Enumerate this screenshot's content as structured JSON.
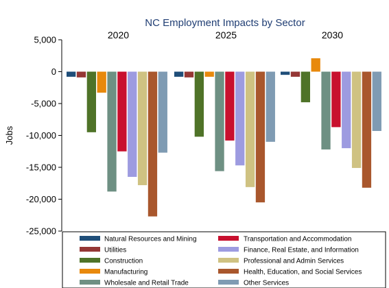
{
  "chart_data": {
    "type": "bar",
    "title": "NC Employment Impacts by Sector",
    "ylabel": "Jobs",
    "xlabel": "",
    "ylim": [
      -25000,
      5000
    ],
    "yticks": [
      5000,
      0,
      -5000,
      -10000,
      -15000,
      -20000,
      -25000
    ],
    "ytick_labels": [
      "5,000",
      "0",
      "-5,000",
      "-10,000",
      "-15,000",
      "-20,000",
      "-25,000"
    ],
    "grid": false,
    "legend_position": "bottom",
    "categories": [
      "2020",
      "2025",
      "2030"
    ],
    "series": [
      {
        "name": "Natural Resources and Mining",
        "color": "#1f4e79",
        "values": [
          -800,
          -800,
          -500
        ]
      },
      {
        "name": "Utilities",
        "color": "#953735",
        "values": [
          -900,
          -900,
          -800
        ]
      },
      {
        "name": "Construction",
        "color": "#4f7328",
        "values": [
          -9500,
          -10200,
          -4800
        ]
      },
      {
        "name": "Manufacturing",
        "color": "#e8890c",
        "values": [
          -3300,
          -800,
          2100
        ]
      },
      {
        "name": "Wholesale and Retail Trade",
        "color": "#6e9083",
        "values": [
          -18800,
          -15600,
          -12200
        ]
      },
      {
        "name": "Transportation and Accommodation",
        "color": "#c8102e",
        "values": [
          -12500,
          -10800,
          -8700
        ]
      },
      {
        "name": "Finance, Real Estate, and Information",
        "color": "#9d9be0",
        "values": [
          -16500,
          -14700,
          -12000
        ]
      },
      {
        "name": "Professional and Admin Services",
        "color": "#cfc282",
        "values": [
          -17800,
          -18100,
          -15100
        ]
      },
      {
        "name": "Health, Education, and Social Services",
        "color": "#a9572d",
        "values": [
          -22700,
          -20500,
          -18200
        ]
      },
      {
        "name": "Other Services",
        "color": "#7f9bb3",
        "values": [
          -12700,
          -11000,
          -9300
        ]
      }
    ]
  }
}
